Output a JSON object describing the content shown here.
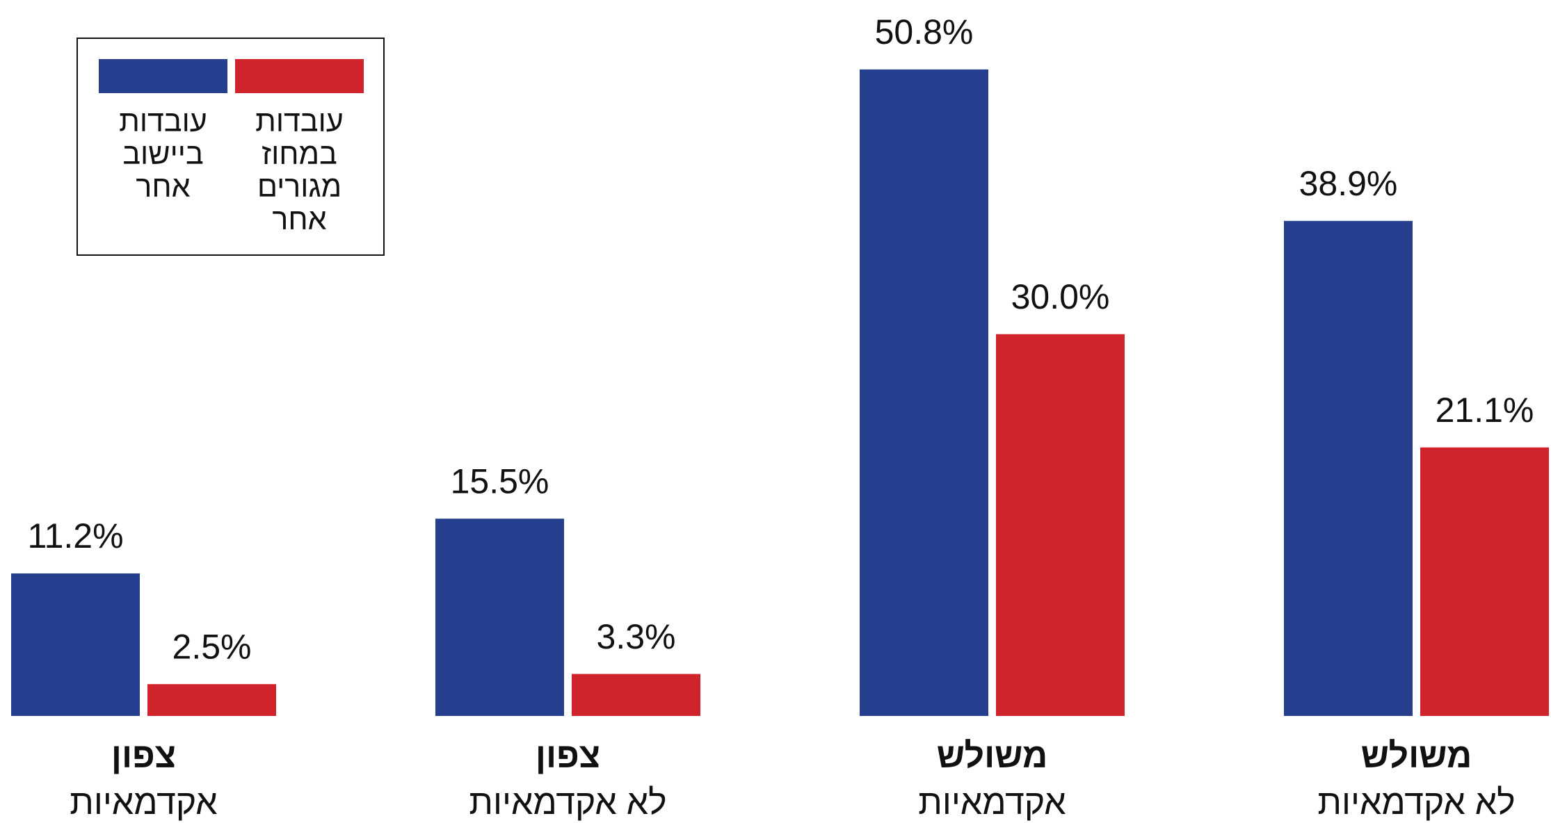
{
  "chart_data": {
    "type": "bar",
    "categories": [
      [
        "צפון",
        "אקדמאיות"
      ],
      [
        "צפון",
        "לא אקדמאיות"
      ],
      [
        "משולש",
        "אקדמאיות"
      ],
      [
        "משולש",
        "לא אקדמאיות"
      ]
    ],
    "series": [
      {
        "name": "עובדות ביישוב אחר",
        "color": "#253f8e",
        "values": [
          11.2,
          15.5,
          50.8,
          38.9
        ],
        "value_labels": [
          "11.2%",
          "15.5%",
          "50.8%",
          "38.9%"
        ]
      },
      {
        "name": "עובדות במחוז מגורים אחר",
        "color": "#d0232b",
        "values": [
          2.5,
          3.3,
          30.0,
          21.1
        ],
        "value_labels": [
          "2.5%",
          "3.3%",
          "30.0%",
          "21.1%"
        ]
      }
    ],
    "ylim": [
      0,
      55
    ],
    "legend": "top-left"
  }
}
